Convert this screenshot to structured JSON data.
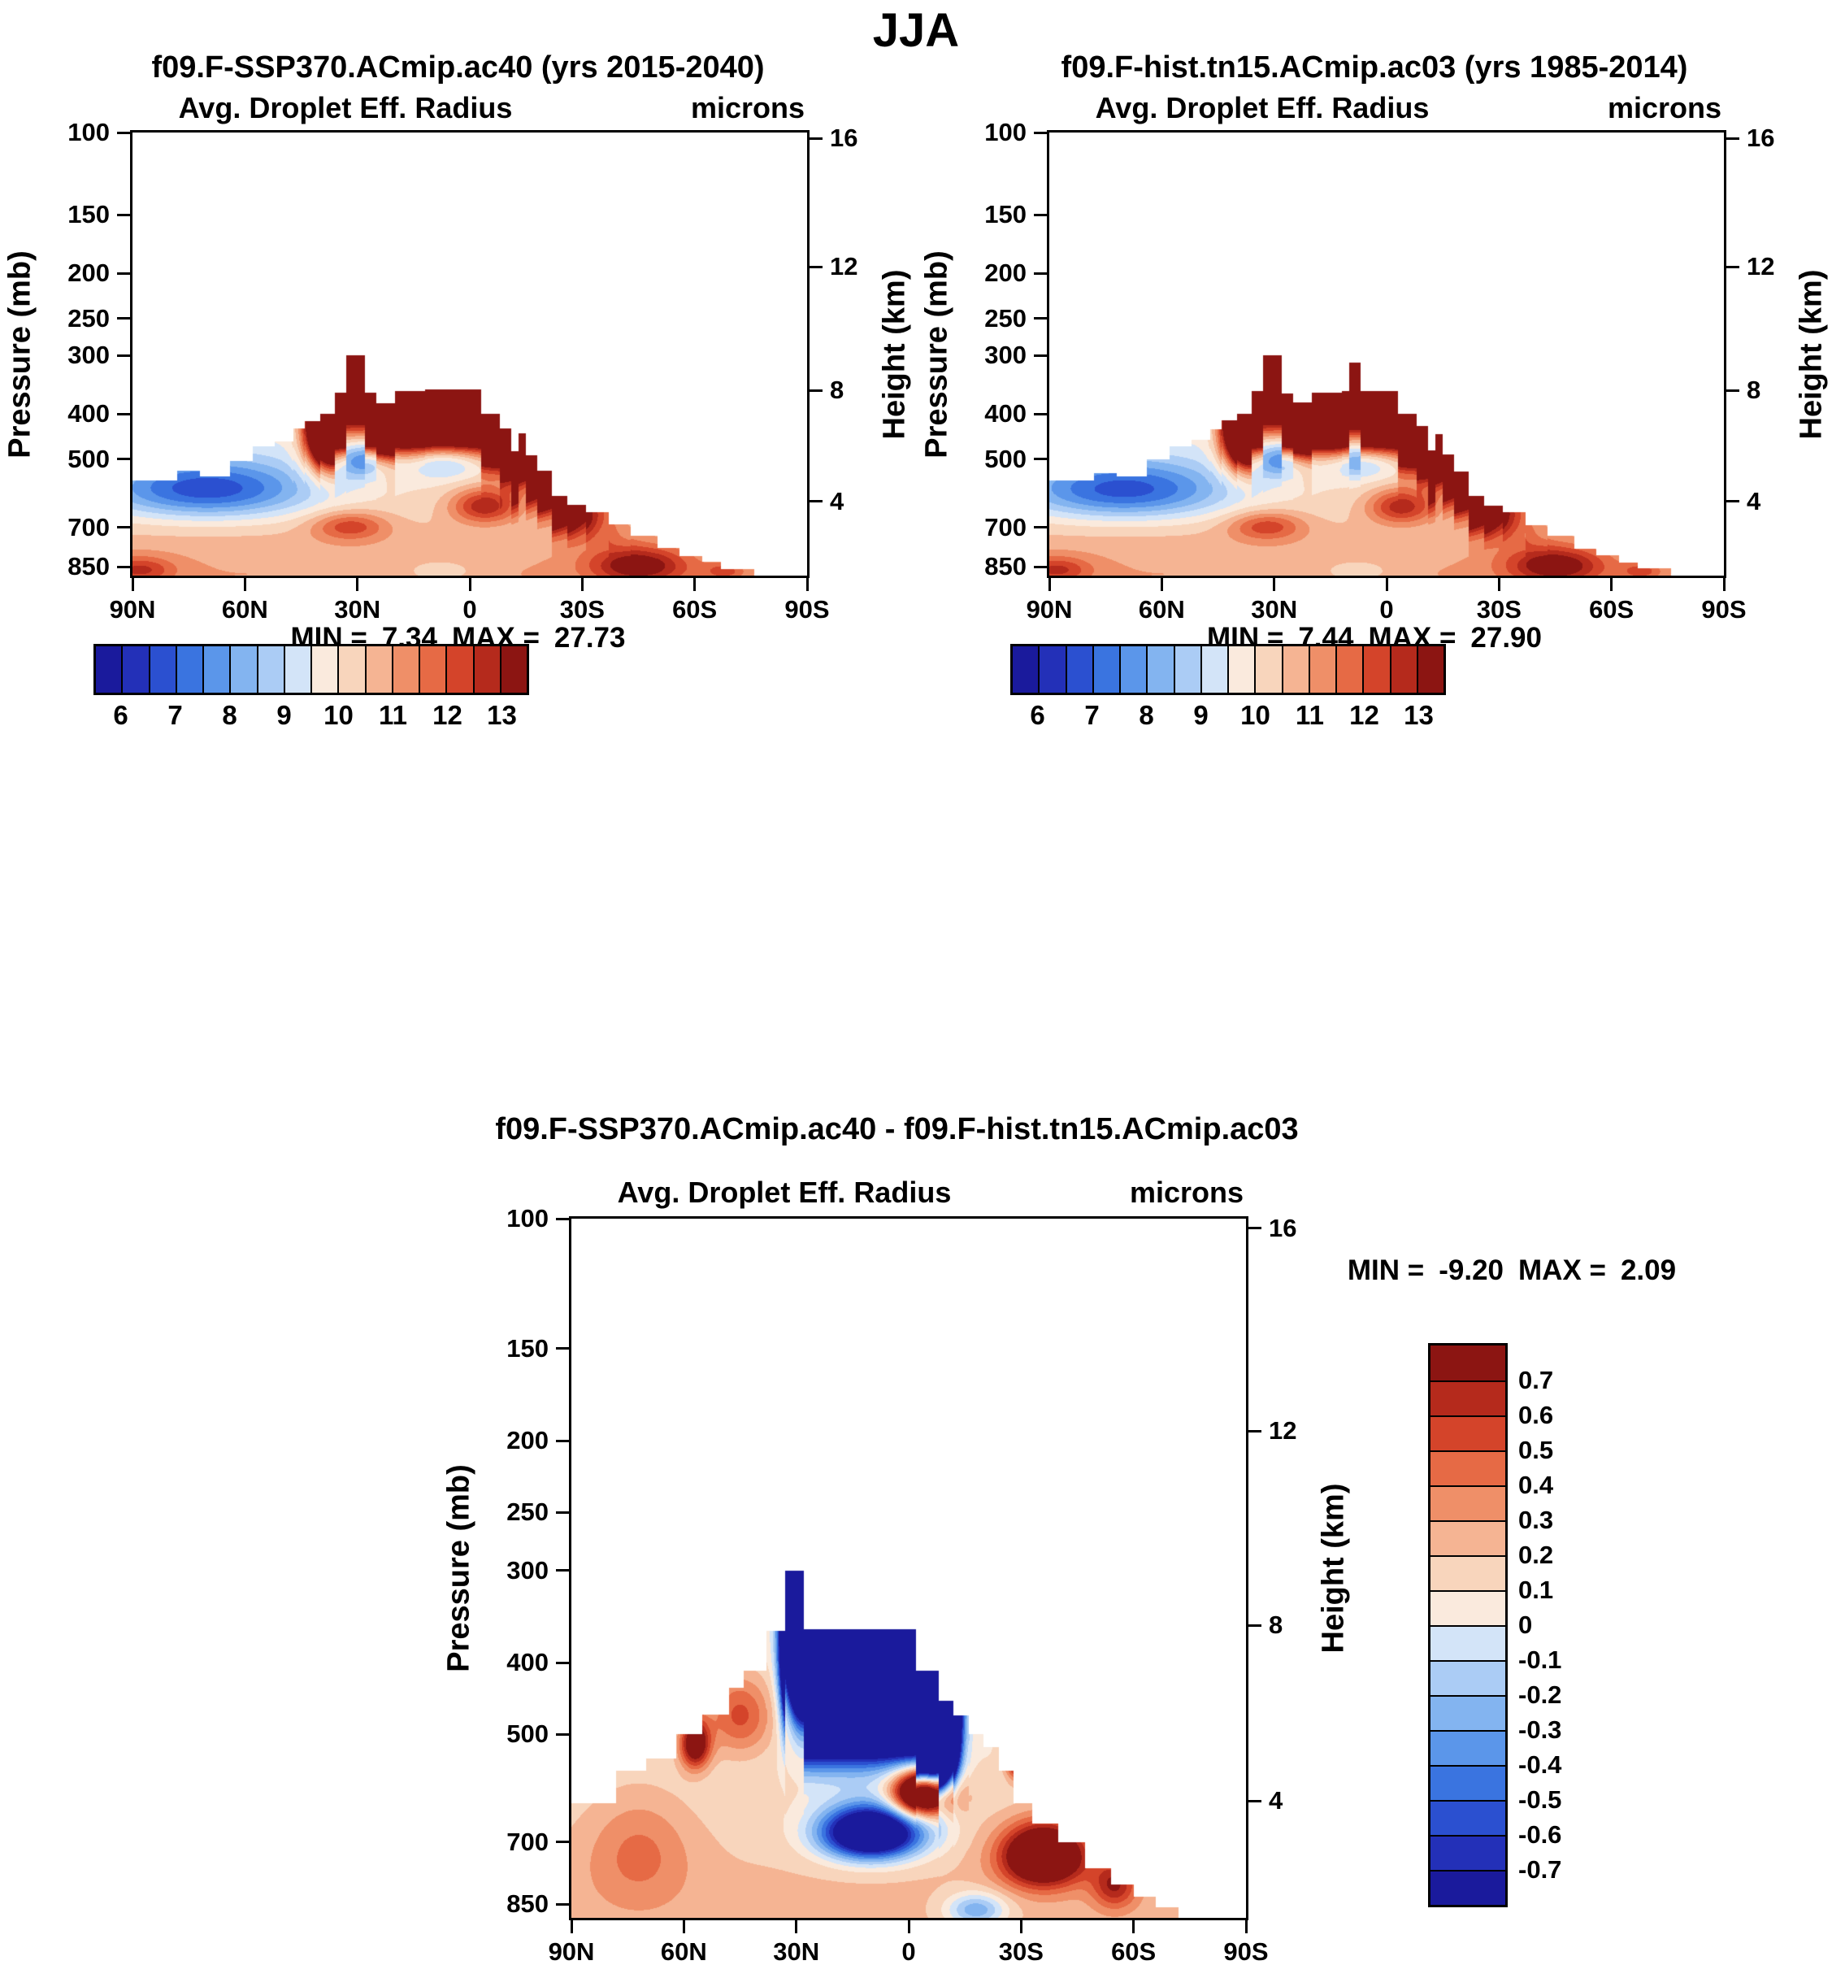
{
  "page_title": "JJA",
  "palette": [
    "#1a1a9c",
    "#2330b8",
    "#2b50d0",
    "#3a74e0",
    "#5b96ea",
    "#83b4f0",
    "#abccf5",
    "#d3e4f8",
    "#faeadd",
    "#f8d5bc",
    "#f5b493",
    "#ef8f68",
    "#e66a45",
    "#d4442a",
    "#b52a1c",
    "#8c1512"
  ],
  "chart_data": [
    {
      "type": "heatmap",
      "id": "panel-a",
      "title": "f09.F-SSP370.ACmip.ac40 (yrs 2015-2040)",
      "subtitle": "Avg. Droplet Eff. Radius",
      "units": "microns",
      "stats": {
        "min_label": "MIN =",
        "min": "7.34",
        "max_label": "MAX =",
        "max": "27.73"
      },
      "x_axis": {
        "ticks": [
          "90N",
          "60N",
          "30N",
          "0",
          "30S",
          "60S",
          "90S"
        ]
      },
      "y_axis_left": {
        "label": "Pressure (mb)",
        "ticks": [
          100,
          150,
          200,
          250,
          300,
          400,
          500,
          700,
          850
        ]
      },
      "y_axis_right": {
        "label": "Height (km)",
        "ticks": [
          "16",
          "12",
          "8",
          "4"
        ],
        "tick_pressures": [
          103,
          194,
          356,
          616
        ]
      },
      "colorbar": {
        "orientation": "horizontal",
        "labels": [
          "6",
          "7",
          "8",
          "9",
          "10",
          "11",
          "12",
          "13"
        ]
      }
    },
    {
      "type": "heatmap",
      "id": "panel-b",
      "title": "f09.F-hist.tn15.ACmip.ac03 (yrs 1985-2014)",
      "subtitle": "Avg. Droplet Eff. Radius",
      "units": "microns",
      "stats": {
        "min_label": "MIN =",
        "min": "7.44",
        "max_label": "MAX =",
        "max": "27.90"
      },
      "x_axis": {
        "ticks": [
          "90N",
          "60N",
          "30N",
          "0",
          "30S",
          "60S",
          "90S"
        ]
      },
      "y_axis_left": {
        "label": "Pressure (mb)",
        "ticks": [
          100,
          150,
          200,
          250,
          300,
          400,
          500,
          700,
          850
        ]
      },
      "y_axis_right": {
        "label": "Height (km)",
        "ticks": [
          "16",
          "12",
          "8",
          "4"
        ],
        "tick_pressures": [
          103,
          194,
          356,
          616
        ]
      },
      "colorbar": {
        "orientation": "horizontal",
        "labels": [
          "6",
          "7",
          "8",
          "9",
          "10",
          "11",
          "12",
          "13"
        ]
      }
    },
    {
      "type": "heatmap",
      "id": "panel-c",
      "title": "f09.F-SSP370.ACmip.ac40 - f09.F-hist.tn15.ACmip.ac03",
      "subtitle": "Avg. Droplet Eff. Radius",
      "units": "microns",
      "stats": {
        "min_label": "MIN =",
        "min": "-9.20",
        "max_label": "MAX =",
        "max": "2.09"
      },
      "x_axis": {
        "ticks": [
          "90N",
          "60N",
          "30N",
          "0",
          "30S",
          "60S",
          "90S"
        ]
      },
      "y_axis_left": {
        "label": "Pressure (mb)",
        "ticks": [
          100,
          150,
          200,
          250,
          300,
          400,
          500,
          700,
          850
        ]
      },
      "y_axis_right": {
        "label": "Height (km)",
        "ticks": [
          "16",
          "12",
          "8",
          "4"
        ],
        "tick_pressures": [
          103,
          194,
          356,
          616
        ]
      },
      "colorbar": {
        "orientation": "vertical",
        "labels": [
          "0.7",
          "0.6",
          "0.5",
          "0.4",
          "0.3",
          "0.2",
          "0.1",
          "0",
          "-0.1",
          "-0.2",
          "-0.3",
          "-0.4",
          "-0.5",
          "-0.6",
          "-0.7"
        ]
      }
    }
  ],
  "field_model": {
    "pressure_range": [
      100,
      887
    ],
    "main_levels": [
      6,
      6.5,
      7,
      7.5,
      8,
      8.5,
      9,
      9.5,
      10,
      10.5,
      11,
      11.5,
      12,
      12.5,
      13
    ],
    "diff_levels": [
      -0.7,
      -0.6,
      -0.5,
      -0.4,
      -0.3,
      -0.2,
      -0.1,
      0,
      0.1,
      0.2,
      0.3,
      0.4,
      0.5,
      0.6,
      0.7
    ],
    "panels": {
      "panel-a": {
        "kind": "main",
        "base": [
          9.7,
          1.3,
          880,
          260
        ],
        "cap": [
          18.1,
          95,
          -8,
          36,
          18,
          6
        ],
        "features": [
          [
            -3.4,
            70,
            28,
            580,
            85
          ],
          [
            -2.2,
            28,
            8,
            502,
            45
          ],
          [
            -1.9,
            7,
            11,
            505,
            45
          ],
          [
            2.7,
            -45,
            13,
            845,
            78
          ],
          [
            2.7,
            -4,
            9,
            628,
            55
          ],
          [
            1.9,
            32,
            10,
            695,
            50
          ],
          [
            1.7,
            88,
            9,
            862,
            55
          ],
          [
            -1.6,
            -23,
            8,
            540,
            50
          ],
          [
            -0.8,
            8,
            10,
            868,
            50
          ],
          [
            1.3,
            -68,
            5,
            868,
            35
          ]
        ],
        "boundary": [
          [
            78,
            90,
            555
          ],
          [
            72,
            78,
            530
          ],
          [
            64,
            72,
            545
          ],
          [
            58,
            64,
            505
          ],
          [
            52,
            58,
            470
          ],
          [
            47,
            52,
            458
          ],
          [
            44,
            47,
            430
          ],
          [
            40,
            44,
            415
          ],
          [
            36,
            40,
            400
          ],
          [
            33,
            36,
            360
          ],
          [
            28,
            33,
            300
          ],
          [
            25,
            28,
            360
          ],
          [
            20,
            25,
            380
          ],
          [
            12,
            20,
            357
          ],
          [
            -3,
            12,
            355
          ],
          [
            -8,
            -3,
            400
          ],
          [
            -11,
            -8,
            430
          ],
          [
            -13,
            -11,
            480
          ],
          [
            -15,
            -13,
            440
          ],
          [
            -18,
            -15,
            490
          ],
          [
            -22,
            -18,
            530
          ],
          [
            -26,
            -22,
            600
          ],
          [
            -31,
            -26,
            625
          ],
          [
            -37,
            -31,
            650
          ],
          [
            -43,
            -37,
            690
          ],
          [
            -50,
            -43,
            730
          ],
          [
            -56,
            -50,
            775
          ],
          [
            -62,
            -56,
            805
          ],
          [
            -67,
            -62,
            830
          ],
          [
            -76,
            -67,
            858
          ]
        ]
      },
      "panel-b": {
        "kind": "main",
        "base": [
          9.7,
          1.3,
          880,
          260
        ],
        "cap": [
          18.2,
          95,
          -8,
          36,
          18,
          6
        ],
        "features": [
          [
            -3.3,
            70,
            28,
            582,
            85
          ],
          [
            -2.2,
            28,
            8,
            500,
            45
          ],
          [
            -1.9,
            7,
            11,
            505,
            45
          ],
          [
            2.75,
            -45,
            13,
            845,
            78
          ],
          [
            2.6,
            -4,
            9,
            630,
            55
          ],
          [
            1.9,
            32,
            10,
            695,
            50
          ],
          [
            1.7,
            88,
            9,
            862,
            55
          ],
          [
            -1.6,
            -23,
            8,
            540,
            50
          ],
          [
            -0.8,
            8,
            10,
            868,
            50
          ],
          [
            1.3,
            -68,
            5,
            868,
            35
          ]
        ],
        "boundary": [
          [
            78,
            90,
            555
          ],
          [
            72,
            78,
            535
          ],
          [
            64,
            72,
            545
          ],
          [
            58,
            64,
            500
          ],
          [
            52,
            58,
            470
          ],
          [
            47,
            52,
            455
          ],
          [
            44,
            47,
            432
          ],
          [
            40,
            44,
            412
          ],
          [
            36,
            40,
            400
          ],
          [
            33,
            36,
            358
          ],
          [
            28,
            33,
            300
          ],
          [
            25,
            28,
            362
          ],
          [
            20,
            25,
            378
          ],
          [
            12,
            20,
            360
          ],
          [
            10,
            12,
            357
          ],
          [
            7,
            10,
            310
          ],
          [
            -3,
            7,
            357
          ],
          [
            -8,
            -3,
            400
          ],
          [
            -11,
            -8,
            425
          ],
          [
            -13,
            -11,
            478
          ],
          [
            -15,
            -13,
            442
          ],
          [
            -18,
            -15,
            488
          ],
          [
            -22,
            -18,
            532
          ],
          [
            -26,
            -22,
            598
          ],
          [
            -31,
            -26,
            628
          ],
          [
            -37,
            -31,
            648
          ],
          [
            -43,
            -37,
            692
          ],
          [
            -50,
            -43,
            728
          ],
          [
            -56,
            -50,
            778
          ],
          [
            -62,
            -56,
            802
          ],
          [
            -67,
            -62,
            832
          ],
          [
            -76,
            -67,
            856
          ]
        ]
      },
      "panel-c": {
        "kind": "diff",
        "base": [
          0.05,
          0.18,
          880,
          300
        ],
        "cap": [
          -12,
          110,
          -6,
          28,
          5,
          4
        ],
        "features": [
          [
            -1.6,
            10,
            13,
            680,
            55
          ],
          [
            1.55,
            -4,
            8,
            600,
            45
          ],
          [
            1.15,
            -36,
            11,
            730,
            70
          ],
          [
            0.85,
            57,
            4,
            515,
            40
          ],
          [
            -0.5,
            -18,
            8,
            865,
            45
          ],
          [
            0.95,
            -29,
            3,
            535,
            35
          ],
          [
            0.45,
            45,
            9,
            470,
            60
          ],
          [
            0.25,
            72,
            14,
            720,
            130
          ],
          [
            0.5,
            -55,
            6,
            800,
            60
          ]
        ],
        "boundary": [
          [
            78,
            90,
            620
          ],
          [
            70,
            78,
            560
          ],
          [
            62,
            70,
            540
          ],
          [
            55,
            62,
            500
          ],
          [
            48,
            55,
            470
          ],
          [
            44,
            48,
            432
          ],
          [
            38,
            44,
            410
          ],
          [
            33,
            38,
            362
          ],
          [
            28,
            33,
            300
          ],
          [
            24,
            28,
            360
          ],
          [
            12,
            24,
            360
          ],
          [
            -2,
            12,
            360
          ],
          [
            -8,
            -2,
            410
          ],
          [
            -12,
            -8,
            450
          ],
          [
            -16,
            -12,
            472
          ],
          [
            -20,
            -16,
            500
          ],
          [
            -24,
            -20,
            520
          ],
          [
            -28,
            -24,
            560
          ],
          [
            -33,
            -28,
            620
          ],
          [
            -40,
            -33,
            660
          ],
          [
            -47,
            -40,
            700
          ],
          [
            -54,
            -47,
            760
          ],
          [
            -60,
            -54,
            800
          ],
          [
            -66,
            -60,
            830
          ],
          [
            -72,
            -66,
            858
          ]
        ]
      }
    }
  }
}
